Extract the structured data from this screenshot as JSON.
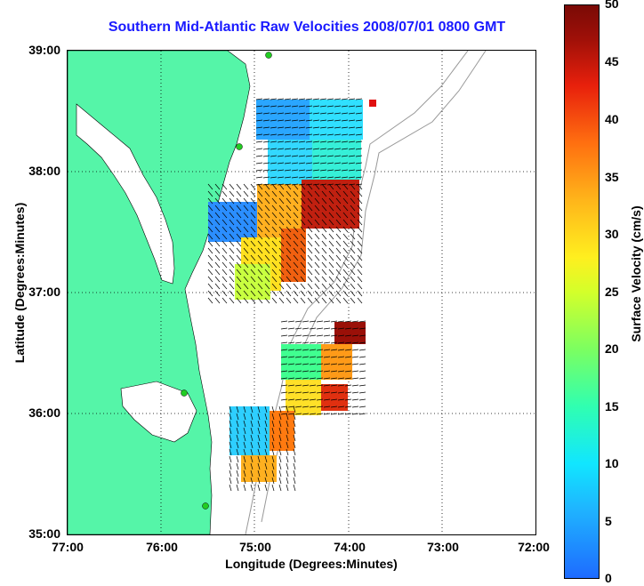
{
  "title": "Southern Mid-Atlantic Raw Velocities 2008/07/01 0800 GMT",
  "x_axis": {
    "label": "Longitude (Degrees:Minutes)",
    "ticks": [
      "77:00",
      "76:00",
      "75:00",
      "74:00",
      "73:00",
      "72:00"
    ]
  },
  "y_axis": {
    "label": "Latitude (Degrees:Minutes)",
    "ticks": [
      "39:00",
      "38:00",
      "37:00",
      "36:00",
      "35:00"
    ]
  },
  "colorbar": {
    "label": "Surface Velocity (cm/s)",
    "ticks": [
      "50",
      "45",
      "40",
      "35",
      "30",
      "25",
      "20",
      "15",
      "10",
      "5",
      "0"
    ],
    "range": [
      0,
      50
    ]
  },
  "colors": {
    "land": "#55f5a8",
    "title": "#1a1aff",
    "station": "#22cc22"
  }
}
